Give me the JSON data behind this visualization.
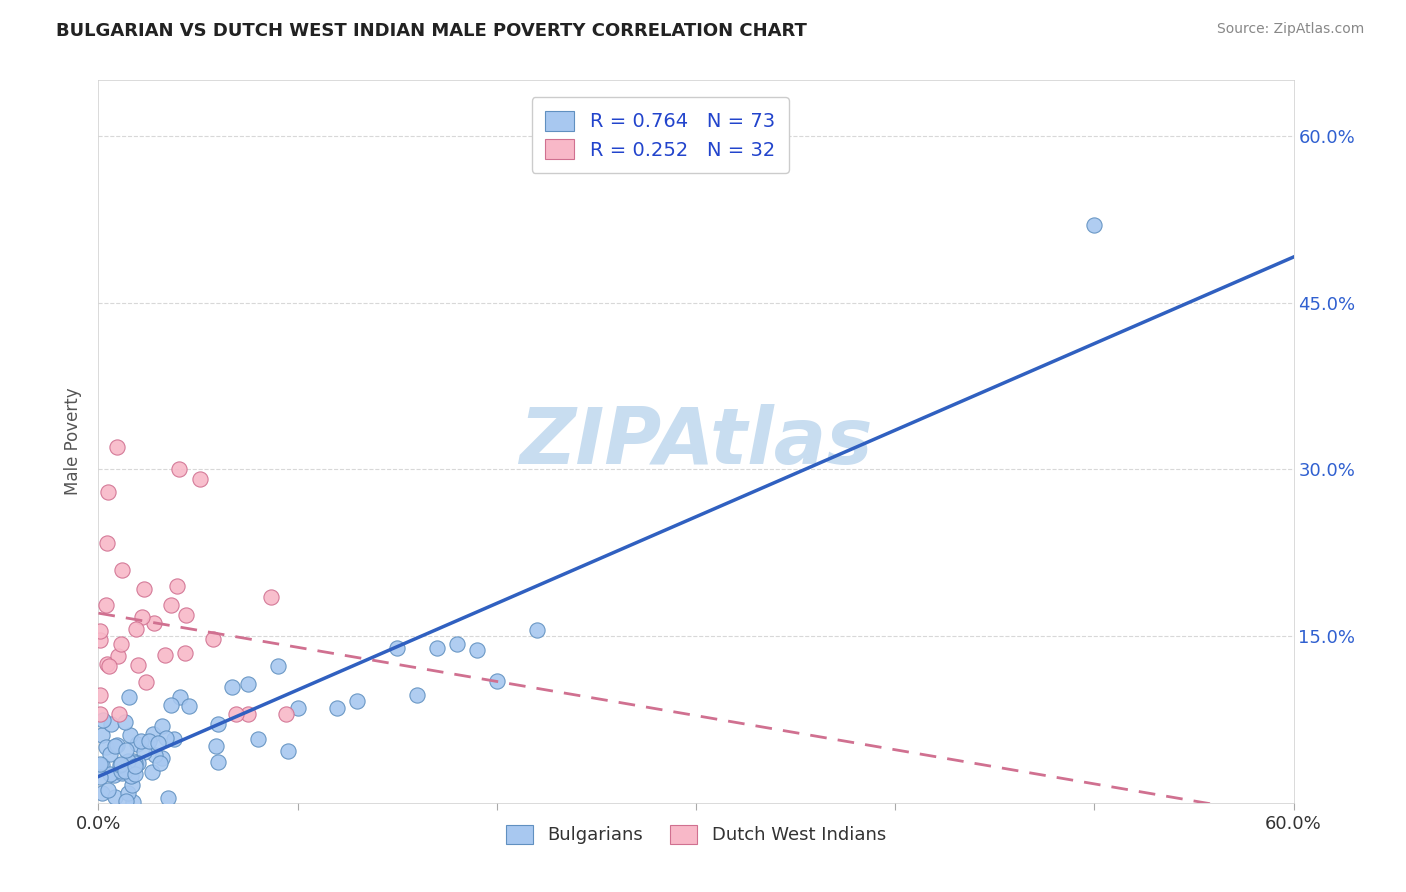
{
  "title": "BULGARIAN VS DUTCH WEST INDIAN MALE POVERTY CORRELATION CHART",
  "source": "Source: ZipAtlas.com",
  "ylabel": "Male Poverty",
  "xlim": [
    0.0,
    0.6
  ],
  "ylim": [
    0.0,
    0.65
  ],
  "xticks": [
    0.0,
    0.1,
    0.2,
    0.3,
    0.4,
    0.5,
    0.6
  ],
  "xtick_labels": [
    "0.0%",
    "",
    "",
    "",
    "",
    "",
    "60.0%"
  ],
  "ytick_labels_right": [
    "15.0%",
    "30.0%",
    "45.0%",
    "60.0%"
  ],
  "ytick_positions_right": [
    0.15,
    0.3,
    0.45,
    0.6
  ],
  "bg_color": "#ffffff",
  "grid_color": "#d8d8d8",
  "blue_color": "#a8c8f0",
  "blue_edge_color": "#6090c0",
  "pink_color": "#f8b8c8",
  "pink_edge_color": "#d07090",
  "blue_line_color": "#3060c0",
  "pink_line_color": "#d07090",
  "right_tick_color": "#3060d0",
  "R_blue": 0.764,
  "N_blue": 73,
  "R_pink": 0.252,
  "N_pink": 32,
  "legend_label_blue": "Bulgarians",
  "legend_label_pink": "Dutch West Indians",
  "watermark_color": "#c8ddf0",
  "watermark_text": "ZIPAtlas"
}
